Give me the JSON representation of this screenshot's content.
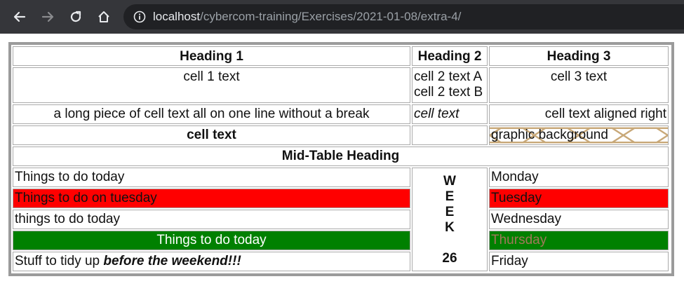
{
  "browser": {
    "url_host": "localhost",
    "url_path": "/cybercom-training/Exercises/2021-01-08/extra-4/",
    "icons": [
      "back-arrow-icon",
      "forward-arrow-icon",
      "reload-icon",
      "home-icon",
      "info-icon"
    ]
  },
  "table": {
    "headings": [
      "Heading 1",
      "Heading 2",
      "Heading 3"
    ],
    "row1": {
      "cell1": "cell 1 text",
      "cell2_line1": "cell 2 text A",
      "cell2_line2": "cell 2 text B",
      "cell3": "cell 3 text"
    },
    "row2": {
      "cell1": "a long piece of cell text all on one line without a break",
      "cell2": "cell text",
      "cell3": "cell text aligned right"
    },
    "row3": {
      "cell1": "cell text",
      "cell2": "",
      "cell3": "graphic background"
    },
    "mid_heading": "Mid-Table Heading",
    "todo_rows": [
      {
        "left": "Things to do today",
        "right": "Monday"
      },
      {
        "left": "Things to do on tuesday",
        "right": "Tuesday"
      },
      {
        "left": "things to do today",
        "right": "Wednesday"
      },
      {
        "left": "Things to do today",
        "right": "Thursday"
      },
      {
        "left_plain": "Stuff to tidy up ",
        "left_emph": "before the weekend!!!",
        "right": "Friday"
      }
    ],
    "week_letters": [
      "W",
      "E",
      "E",
      "K"
    ],
    "week_number": "26",
    "colors": {
      "red": "#ff0000",
      "green": "#008000",
      "thursday_text": "#a0785a",
      "graphic_pattern": "#c8a878"
    }
  }
}
